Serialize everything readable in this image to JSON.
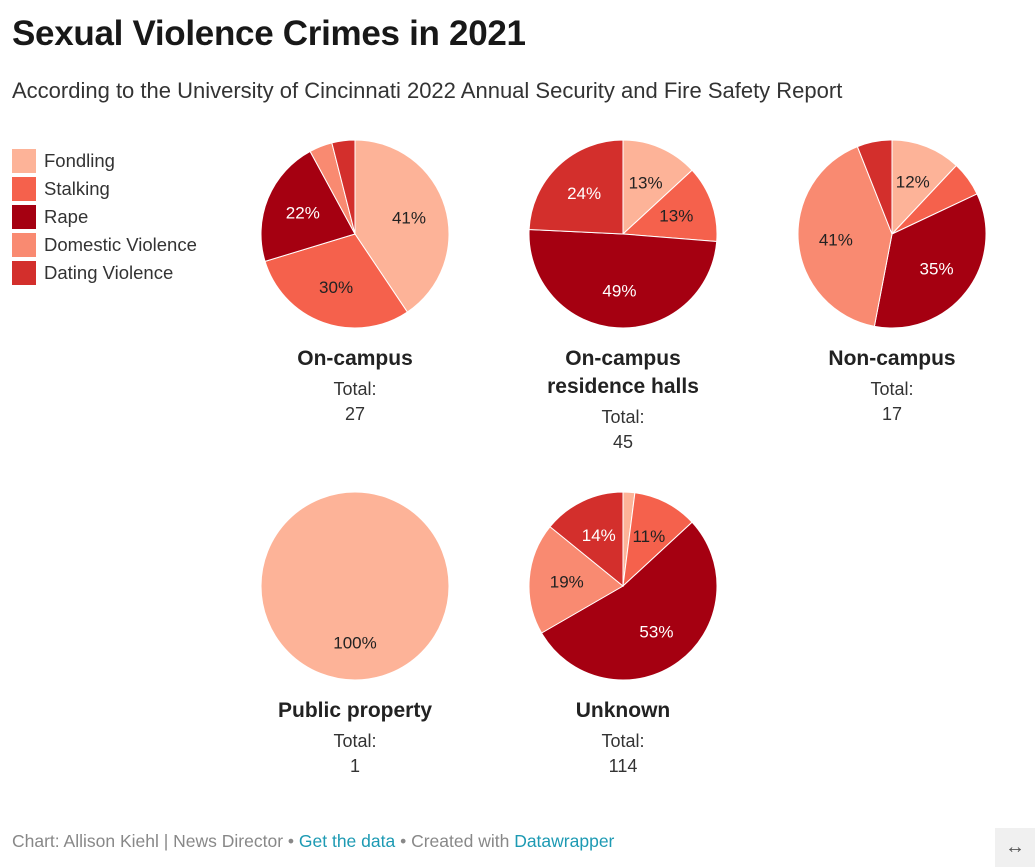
{
  "title": "Sexual Violence Crimes in 2021",
  "subtitle": "According to the University of Cincinnati 2022 Annual Security and Fire Safety Report",
  "footer": {
    "credit": "Chart: Allison Kiehl | News Director",
    "sep1": " • ",
    "get_data": "Get the data",
    "sep2": " • Created with ",
    "datawrapper": "Datawrapper",
    "expand_icon": "↔"
  },
  "chart_data": {
    "type": "pie",
    "title": "Sexual Violence Crimes in 2021",
    "legend_position": "top-left",
    "categories": [
      "Fondling",
      "Stalking",
      "Rape",
      "Domestic Violence",
      "Dating Violence"
    ],
    "colors": [
      "#fdb398",
      "#f5614c",
      "#a50011",
      "#f98a71",
      "#d32f2c"
    ],
    "label_colors": [
      "#222",
      "#222",
      "#fff",
      "#222",
      "#fff"
    ],
    "total_label": "Total:",
    "pies": [
      {
        "name": "On-campus",
        "total": "27",
        "values": [
          41,
          30,
          22,
          4,
          4
        ]
      },
      {
        "name": "On-campus residence halls",
        "total": "45",
        "values": [
          13,
          13,
          49,
          0,
          24
        ]
      },
      {
        "name": "Non-campus",
        "total": "17",
        "values": [
          12,
          6,
          35,
          41,
          6
        ]
      },
      {
        "name": "Public property",
        "total": "1",
        "values": [
          100,
          0,
          0,
          0,
          0
        ]
      },
      {
        "name": "Unknown",
        "total": "114",
        "values": [
          2,
          11,
          53,
          19,
          14
        ]
      }
    ]
  }
}
